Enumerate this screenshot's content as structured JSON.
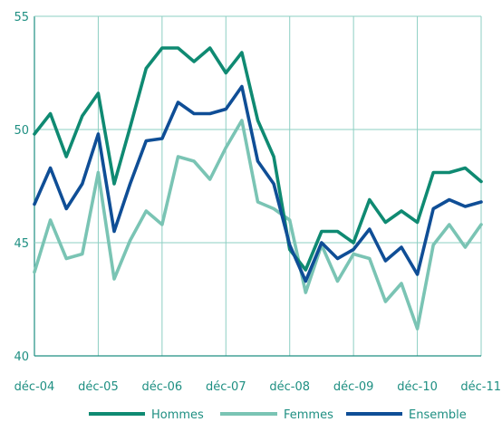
{
  "chart_data": {
    "type": "line",
    "title": "",
    "xlabel": "",
    "ylabel": "",
    "ylim": [
      40,
      55
    ],
    "yticks": [
      40,
      45,
      50,
      55
    ],
    "xticks": [
      "déc-04",
      "déc-05",
      "déc-06",
      "déc-07",
      "déc-08",
      "déc-09",
      "déc-10",
      "déc-11"
    ],
    "grid": true,
    "legend_position": "bottom",
    "x": [
      "déc-04",
      "mars-05",
      "juin-05",
      "sept-05",
      "déc-05",
      "mars-06",
      "juin-06",
      "sept-06",
      "déc-06",
      "mars-07",
      "juin-07",
      "sept-07",
      "déc-07",
      "mars-08",
      "juin-08",
      "sept-08",
      "déc-08",
      "mars-09",
      "juin-09",
      "sept-09",
      "déc-09",
      "mars-10",
      "juin-10",
      "sept-10",
      "déc-10",
      "mars-11",
      "juin-11",
      "sept-11",
      "déc-11"
    ],
    "series": [
      {
        "name": "Hommes",
        "color": "#0f8a72",
        "values": [
          49.8,
          50.7,
          48.8,
          50.6,
          51.6,
          47.6,
          50.1,
          52.7,
          53.6,
          53.6,
          53.0,
          53.6,
          52.5,
          53.4,
          50.4,
          48.8,
          44.7,
          43.8,
          45.5,
          45.5,
          45.0,
          46.9,
          45.9,
          46.4,
          45.9,
          48.1,
          48.1,
          48.3,
          47.7
        ]
      },
      {
        "name": "Femmes",
        "color": "#7ac4b4",
        "values": [
          43.7,
          46.0,
          44.3,
          44.5,
          48.1,
          43.4,
          45.1,
          46.4,
          45.8,
          48.8,
          48.6,
          47.8,
          49.2,
          50.4,
          46.8,
          46.5,
          46.0,
          42.8,
          44.9,
          43.3,
          44.5,
          44.3,
          42.4,
          43.2,
          41.2,
          44.9,
          45.8,
          44.8,
          45.8
        ]
      },
      {
        "name": "Ensemble",
        "color": "#0f4e96",
        "values": [
          46.7,
          48.3,
          46.5,
          47.6,
          49.8,
          45.5,
          47.6,
          49.5,
          49.6,
          51.2,
          50.7,
          50.7,
          50.9,
          51.9,
          48.6,
          47.6,
          44.9,
          43.3,
          45.0,
          44.3,
          44.7,
          45.6,
          44.2,
          44.8,
          43.6,
          46.5,
          46.9,
          46.6,
          46.8
        ]
      }
    ]
  }
}
